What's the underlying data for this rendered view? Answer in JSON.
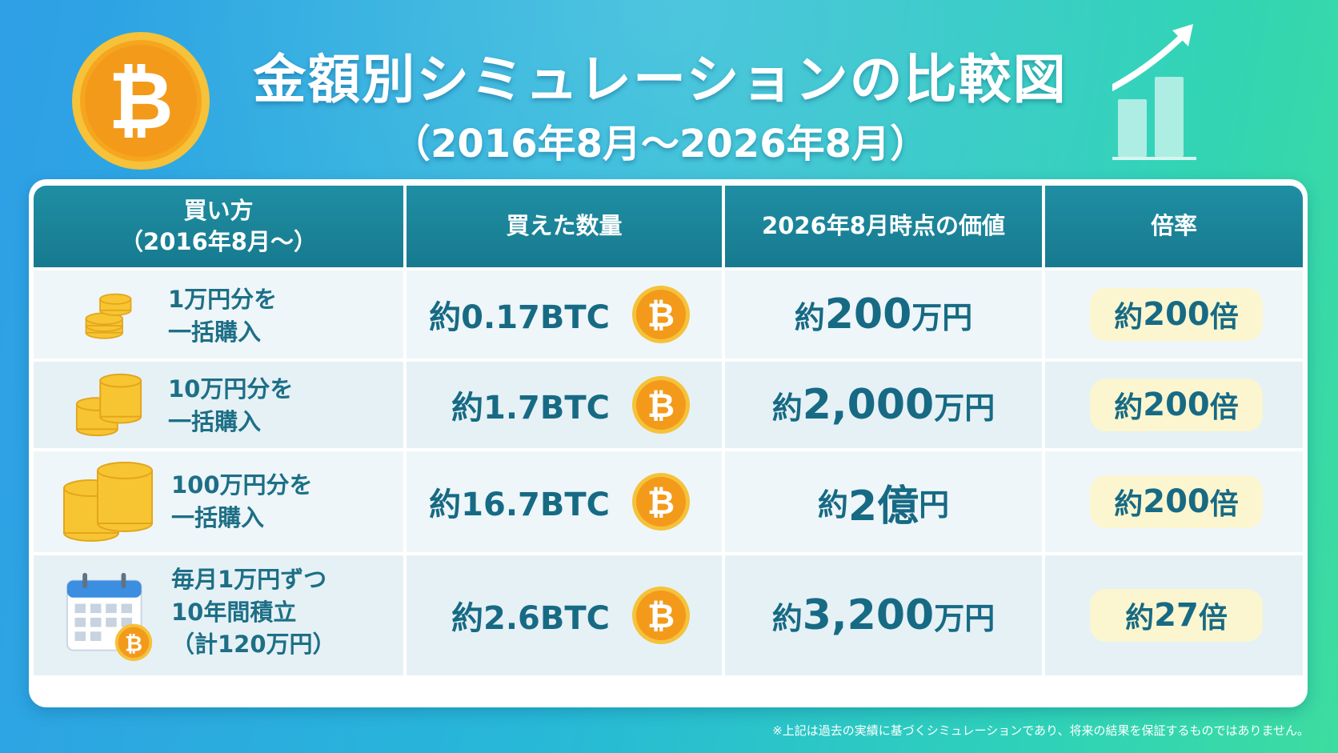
{
  "header": {
    "title": "金額別シミュレーションの比較図",
    "subtitle": "（2016年8月～2026年8月）",
    "coin_symbol": "₿"
  },
  "table": {
    "columns": [
      "買い方",
      "（2016年8月～）",
      "買えた数量",
      "2026年8月時点の価値",
      "倍率"
    ],
    "rows": [
      {
        "method_line1": "1万円分を",
        "method_line2": "一括購入",
        "method_line3": "",
        "icon": "coin-stack-small-icon",
        "qty": "約0.17BTC",
        "value_prefix": "約",
        "value_number": "200",
        "value_unit": "万円",
        "multiplier_prefix": "約",
        "multiplier_number": "200",
        "multiplier_unit": "倍"
      },
      {
        "method_line1": "10万円分を",
        "method_line2": "一括購入",
        "method_line3": "",
        "icon": "coin-stack-medium-icon",
        "qty": "約1.7BTC",
        "value_prefix": "約",
        "value_number": "2,000",
        "value_unit": "万円",
        "multiplier_prefix": "約",
        "multiplier_number": "200",
        "multiplier_unit": "倍"
      },
      {
        "method_line1": "100万円分を",
        "method_line2": "一括購入",
        "method_line3": "",
        "icon": "coin-stack-large-icon",
        "qty": "約16.7BTC",
        "value_prefix": "約",
        "value_number": "2億",
        "value_unit": "円",
        "multiplier_prefix": "約",
        "multiplier_number": "200",
        "multiplier_unit": "倍"
      },
      {
        "method_line1": "毎月1万円ずつ",
        "method_line2": "10年間積立",
        "method_line3": "（計120万円）",
        "icon": "calendar-bitcoin-icon",
        "qty": "約2.6BTC",
        "value_prefix": "約",
        "value_number": "3,200",
        "value_unit": "万円",
        "multiplier_prefix": "約",
        "multiplier_number": "27",
        "multiplier_unit": "倍"
      }
    ]
  },
  "footnote": "※上記は過去の実績に基づくシミュレーションであり、将来の結果を保証するものではありません。",
  "colors": {
    "header_bg": "#1f8ea3",
    "text_teal": "#176a84",
    "coin_orange": "#f39a1b",
    "coin_gold": "#f7c531",
    "pill_bg": "#fbf6cf"
  }
}
